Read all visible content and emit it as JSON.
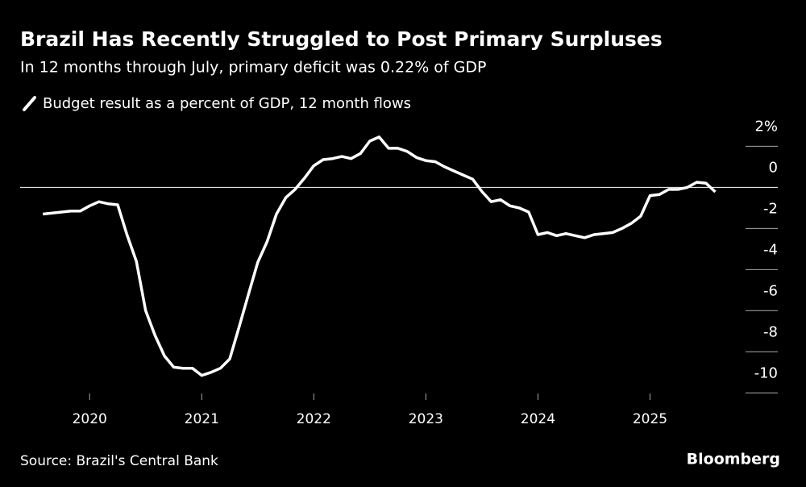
{
  "chart_data": {
    "type": "line",
    "title": "Brazil Has Recently Struggled to Post Primary Surpluses",
    "subtitle": "In 12 months through July, primary deficit was 0.22% of GDP",
    "source": "Source: Brazil's Central Bank",
    "brand": "Bloomberg",
    "x": [
      2019.583,
      2019.667,
      2019.75,
      2019.833,
      2019.917,
      2020.0,
      2020.083,
      2020.167,
      2020.25,
      2020.333,
      2020.417,
      2020.5,
      2020.583,
      2020.667,
      2020.75,
      2020.833,
      2020.917,
      2021.0,
      2021.083,
      2021.167,
      2021.25,
      2021.333,
      2021.417,
      2021.5,
      2021.583,
      2021.667,
      2021.75,
      2021.833,
      2021.917,
      2022.0,
      2022.083,
      2022.167,
      2022.25,
      2022.333,
      2022.417,
      2022.5,
      2022.583,
      2022.667,
      2022.75,
      2022.833,
      2022.917,
      2023.0,
      2023.083,
      2023.167,
      2023.25,
      2023.333,
      2023.417,
      2023.5,
      2023.583,
      2023.667,
      2023.75,
      2023.833,
      2023.917,
      2024.0,
      2024.083,
      2024.167,
      2024.25,
      2024.333,
      2024.417,
      2024.5,
      2024.583,
      2024.667,
      2024.75,
      2024.833,
      2024.917,
      2025.0,
      2025.083,
      2025.167,
      2025.25,
      2025.333,
      2025.417,
      2025.5,
      2025.583
    ],
    "series": [
      {
        "name": "Budget result as a percent of GDP, 12 month flows",
        "color": "#ffffff",
        "values": [
          -1.3,
          -1.25,
          -1.2,
          -1.15,
          -1.15,
          -0.9,
          -0.7,
          -0.8,
          -0.85,
          -2.3,
          -3.6,
          -6.0,
          -7.2,
          -8.2,
          -8.75,
          -8.8,
          -8.8,
          -9.15,
          -9.0,
          -8.8,
          -8.35,
          -6.8,
          -5.2,
          -3.65,
          -2.65,
          -1.3,
          -0.5,
          -0.1,
          0.45,
          1.05,
          1.35,
          1.4,
          1.5,
          1.4,
          1.65,
          2.25,
          2.45,
          1.9,
          1.9,
          1.75,
          1.45,
          1.3,
          1.25,
          1.0,
          0.8,
          0.6,
          0.4,
          -0.2,
          -0.7,
          -0.6,
          -0.9,
          -1.0,
          -1.2,
          -2.3,
          -2.2,
          -2.35,
          -2.25,
          -2.35,
          -2.45,
          -2.3,
          -2.25,
          -2.2,
          -2.0,
          -1.75,
          -1.4,
          -0.4,
          -0.35,
          -0.1,
          -0.1,
          0.0,
          0.25,
          0.2,
          -0.22
        ]
      }
    ],
    "xlim": [
      2019.38,
      2026.14
    ],
    "xticks": [
      2020,
      2021,
      2022,
      2023,
      2024,
      2025
    ],
    "ylim": [
      -10.5,
      2.8
    ],
    "yticks": [
      {
        "value": 2,
        "label": "2%"
      },
      0,
      -2,
      -4,
      -6,
      -8,
      -10
    ]
  }
}
